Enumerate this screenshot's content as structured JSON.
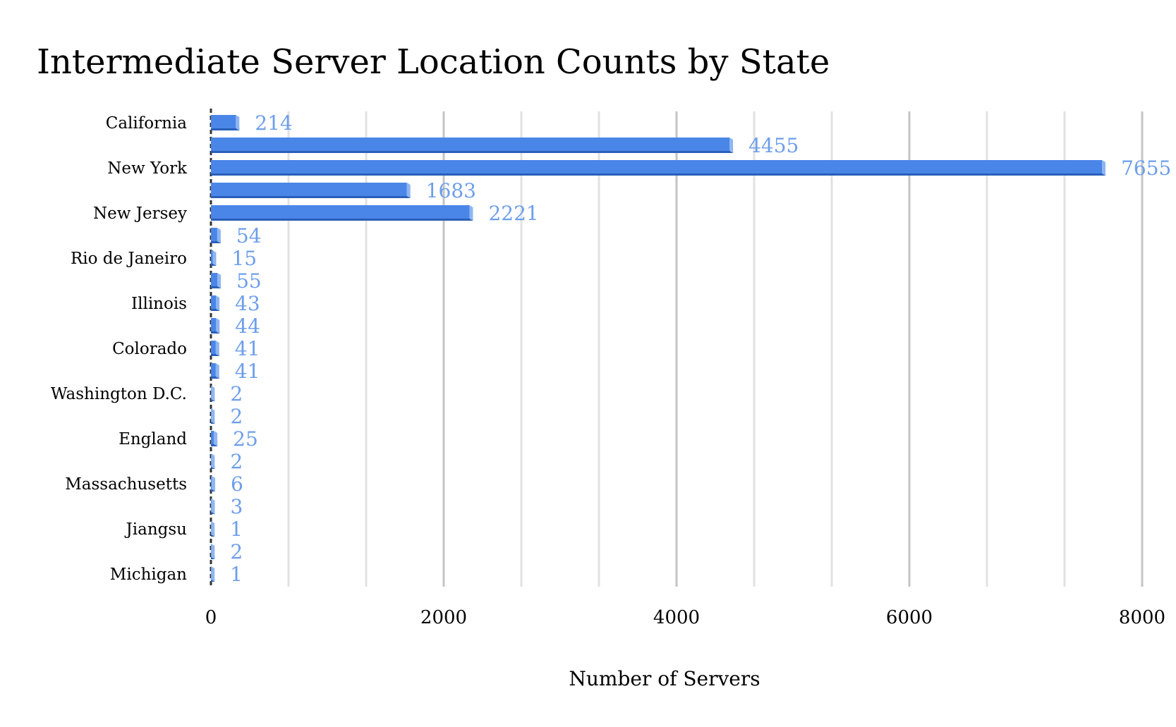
{
  "colors": {
    "bar": "#4a86e8",
    "bar_dark": "#2a5fb8",
    "bar_light": "#8fb6f2",
    "data_label": "#6d9eeb",
    "grid_major": "#c4c4c4",
    "grid_minor": "#e2e2e2",
    "axis_line": "#333333"
  },
  "chart_data": {
    "type": "bar",
    "orientation": "horizontal",
    "title": "Intermediate Server Location Counts by State",
    "xlabel": "Number of Servers",
    "ylabel": "",
    "xlim": [
      0,
      8000
    ],
    "xticks": [
      0,
      2000,
      4000,
      6000,
      8000
    ],
    "xtick_labels": [
      "0",
      "2000",
      "4000",
      "6000",
      "8000"
    ],
    "grid": true,
    "legend": "none",
    "category_labels": [
      {
        "label": "California",
        "row": 0
      },
      {
        "label": "New York",
        "row": 2
      },
      {
        "label": "New Jersey",
        "row": 4
      },
      {
        "label": "Rio de Janeiro",
        "row": 6
      },
      {
        "label": "Illinois",
        "row": 8
      },
      {
        "label": "Colorado",
        "row": 10
      },
      {
        "label": "Washington D.C.",
        "row": 12
      },
      {
        "label": "England",
        "row": 14
      },
      {
        "label": "Massachusetts",
        "row": 16
      },
      {
        "label": "Jiangsu",
        "row": 18
      },
      {
        "label": "Michigan",
        "row": 20
      }
    ],
    "values": [
      214,
      4455,
      7655,
      1683,
      2221,
      54,
      15,
      55,
      43,
      44,
      41,
      41,
      2,
      2,
      25,
      2,
      6,
      3,
      1,
      2,
      1
    ],
    "data_labels": [
      "214",
      "4455",
      "7655",
      "1683",
      "2221",
      "54",
      "15",
      "55",
      "43",
      "44",
      "41",
      "41",
      "2",
      "2",
      "25",
      "2",
      "6",
      "3",
      "1",
      "2",
      "1"
    ]
  }
}
